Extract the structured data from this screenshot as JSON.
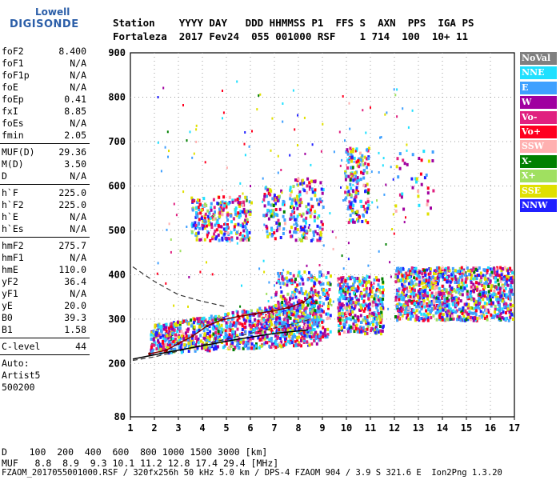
{
  "logo": {
    "top": "Lowell",
    "main": "DIGISONDE"
  },
  "header": {
    "line1": "Station    YYYY DAY   DDD HHMMSS P1  FFS S  AXN  PPS  IGA PS",
    "line2": "Fortaleza  2017 Fev24  055 001000 RSF    1 714  100  10+ 11"
  },
  "params": [
    [
      {
        "k": "foF2",
        "v": "8.400"
      },
      {
        "k": "foF1",
        "v": "N/A"
      },
      {
        "k": "foF1p",
        "v": "N/A"
      },
      {
        "k": "foE",
        "v": "N/A"
      },
      {
        "k": "foEp",
        "v": "0.41"
      },
      {
        "k": "fxI",
        "v": "8.85"
      },
      {
        "k": "foEs",
        "v": "N/A"
      },
      {
        "k": "fmin",
        "v": "2.05"
      }
    ],
    [
      {
        "k": "MUF(D)",
        "v": "29.36"
      },
      {
        "k": "M(D)",
        "v": "3.50"
      },
      {
        "k": "D",
        "v": "N/A"
      }
    ],
    [
      {
        "k": "h`F",
        "v": "225.0"
      },
      {
        "k": "h`F2",
        "v": "225.0"
      },
      {
        "k": "h`E",
        "v": "N/A"
      },
      {
        "k": "h`Es",
        "v": "N/A"
      }
    ],
    [
      {
        "k": "hmF2",
        "v": "275.7"
      },
      {
        "k": "hmF1",
        "v": "N/A"
      },
      {
        "k": "hmE",
        "v": "110.0"
      },
      {
        "k": "yF2",
        "v": "36.4"
      },
      {
        "k": "yF1",
        "v": "N/A"
      },
      {
        "k": "yE",
        "v": "20.0"
      },
      {
        "k": "B0",
        "v": "39.3"
      },
      {
        "k": "B1",
        "v": "1.58"
      }
    ],
    [
      {
        "k": "C-level",
        "v": "44"
      }
    ]
  ],
  "auto": [
    "Auto:",
    "Artist5",
    "500200"
  ],
  "legend": [
    {
      "label": "NoVal",
      "color": "#808080"
    },
    {
      "label": "NNE",
      "color": "#20e0ff"
    },
    {
      "label": "E",
      "color": "#3fa0ff"
    },
    {
      "label": "W",
      "color": "#a000a0"
    },
    {
      "label": "Vo-",
      "color": "#e0207f"
    },
    {
      "label": "Vo+",
      "color": "#ff0020"
    },
    {
      "label": "SSW",
      "color": "#ffb0b0"
    },
    {
      "label": "X-",
      "color": "#008000"
    },
    {
      "label": "X+",
      "color": "#a0e060"
    },
    {
      "label": "SSE",
      "color": "#e0e000"
    },
    {
      "label": "NNW",
      "color": "#2020ff"
    }
  ],
  "bottom": {
    "line1": "D    100  200  400  600  800 1000 1500 3000 [km]",
    "line2": "MUF   8.8  8.9  9.3 10.1 11.2 12.8 17.4 29.4 [MHz]"
  },
  "footer": "FZAOM_2017055001000.RSF / 320fx256h 50 kHz 5.0 km / DPS-4 FZAOM 904 / 3.9 S 321.6 E  Ion2Png 1.3.20",
  "chart_data": {
    "type": "scatter",
    "x_label": "",
    "y_label": "",
    "xlim": [
      1,
      17
    ],
    "ylim": [
      80,
      900
    ],
    "x_ticks": [
      1,
      2,
      3,
      4,
      5,
      6,
      7,
      8,
      9,
      10,
      11,
      12,
      13,
      14,
      15,
      16,
      17
    ],
    "y_ticks": [
      80,
      200,
      300,
      400,
      500,
      600,
      700,
      800,
      900
    ],
    "grid": "dotted",
    "trace_points": [
      {
        "x": 1.8,
        "y": 222
      },
      {
        "x": 2.5,
        "y": 230
      },
      {
        "x": 3.0,
        "y": 245
      },
      {
        "x": 3.6,
        "y": 262
      },
      {
        "x": 4.2,
        "y": 285
      },
      {
        "x": 4.8,
        "y": 298
      },
      {
        "x": 5.5,
        "y": 306
      },
      {
        "x": 6.2,
        "y": 312
      },
      {
        "x": 6.9,
        "y": 318
      },
      {
        "x": 7.6,
        "y": 326
      },
      {
        "x": 8.2,
        "y": 338
      },
      {
        "x": 8.5,
        "y": 350
      }
    ],
    "profile_points": [
      {
        "x": 1.1,
        "y": 210
      },
      {
        "x": 2.5,
        "y": 225
      },
      {
        "x": 4.0,
        "y": 240
      },
      {
        "x": 5.5,
        "y": 255
      },
      {
        "x": 7.0,
        "y": 268
      },
      {
        "x": 8.4,
        "y": 275.7
      }
    ],
    "dashed_upper": [
      {
        "x": 1.1,
        "y": 418
      },
      {
        "x": 2.0,
        "y": 385
      },
      {
        "x": 3.0,
        "y": 355
      },
      {
        "x": 4.0,
        "y": 340
      },
      {
        "x": 5.0,
        "y": 328
      }
    ],
    "dashed_lower": [
      {
        "x": 1.1,
        "y": 207
      },
      {
        "x": 2.0,
        "y": 215
      },
      {
        "x": 3.0,
        "y": 228
      },
      {
        "x": 4.0,
        "y": 242
      },
      {
        "x": 5.0,
        "y": 255
      },
      {
        "x": 6.0,
        "y": 268
      },
      {
        "x": 7.0,
        "y": 280
      },
      {
        "x": 8.0,
        "y": 292
      },
      {
        "x": 8.5,
        "y": 300
      }
    ],
    "echo_regions": [
      {
        "x0": 1.8,
        "x1": 8.9,
        "y0": 225,
        "y1": 330,
        "n": 1100,
        "slope": true
      },
      {
        "x0": 7.0,
        "x1": 9.3,
        "y0": 260,
        "y1": 410,
        "n": 350
      },
      {
        "x0": 9.6,
        "x1": 11.5,
        "y0": 270,
        "y1": 400,
        "n": 420
      },
      {
        "x0": 12.0,
        "x1": 16.9,
        "y0": 300,
        "y1": 420,
        "n": 1100
      },
      {
        "x0": 3.5,
        "x1": 6.0,
        "y0": 480,
        "y1": 580,
        "n": 260
      },
      {
        "x0": 6.5,
        "x1": 7.4,
        "y0": 480,
        "y1": 600,
        "n": 90
      },
      {
        "x0": 7.6,
        "x1": 9.0,
        "y0": 480,
        "y1": 620,
        "n": 160
      },
      {
        "x0": 9.9,
        "x1": 10.9,
        "y0": 520,
        "y1": 690,
        "n": 170
      },
      {
        "x0": 12.0,
        "x1": 13.6,
        "y0": 540,
        "y1": 690,
        "n": 40
      },
      {
        "x0": 2.0,
        "x1": 13.0,
        "y0": 320,
        "y1": 840,
        "n": 200,
        "sparse": true
      }
    ]
  }
}
